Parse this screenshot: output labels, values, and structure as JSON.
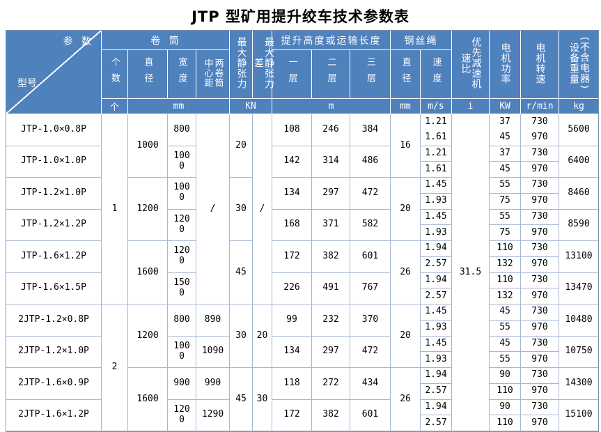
{
  "title": "JTP 型矿用提升绞车技术参数表",
  "colors": {
    "header_bg": "#4f81bd",
    "header_text": "#ffffff",
    "header_grid": "#ffffff",
    "body_grid": "#a4b7d3",
    "outer_border": "#7d91ad",
    "body_text": "#000000"
  },
  "header": {
    "corner": {
      "param_label": "参  数",
      "model_label": "型号"
    },
    "groups": {
      "drum": "卷 筒",
      "lift": "提升高度或运输长度",
      "rope": "钢丝绳"
    },
    "cols": {
      "count": "个数",
      "diameter": "直径",
      "width": "宽度",
      "center_distance": "两卷筒中心距",
      "max_static_tension": "最大静张力",
      "max_static_tension_diff": "最大静张力差",
      "layer1": "一层",
      "layer2": "二层",
      "layer3": "三层",
      "rope_diameter": "直径",
      "rope_speed": "速度",
      "reducer_ratio": "优先减速机速比",
      "motor_power": "电机功率",
      "motor_rpm": "电机转速",
      "weight": "设备重量(不含电器)"
    },
    "units": {
      "count": "个",
      "drum_mm": "mm",
      "tension_kn": "KN",
      "lift_m": "m",
      "rope_mm": "mm",
      "speed_ms": "m/s",
      "ratio_i": "i",
      "power_kw": "KW",
      "rpm_rmin": "r/min",
      "weight_kg": "kg"
    }
  },
  "table": {
    "reducer_ratio": "31.5",
    "counts": [
      {
        "start": 0,
        "span": 6,
        "value": "1"
      },
      {
        "start": 6,
        "span": 4,
        "value": "2"
      }
    ],
    "diameters": [
      {
        "start": 0,
        "span": 2,
        "value": "1000"
      },
      {
        "start": 2,
        "span": 2,
        "value": "1200"
      },
      {
        "start": 4,
        "span": 2,
        "value": "1600"
      },
      {
        "start": 6,
        "span": 2,
        "value": "1200"
      },
      {
        "start": 8,
        "span": 2,
        "value": "1600"
      }
    ],
    "centers": [
      {
        "start": 0,
        "span": 6,
        "value": "/"
      },
      {
        "start": 6,
        "span": 1,
        "value": "890"
      },
      {
        "start": 7,
        "span": 1,
        "value": "1090"
      },
      {
        "start": 8,
        "span": 1,
        "value": "990"
      },
      {
        "start": 9,
        "span": 1,
        "value": "1290"
      }
    ],
    "tensions": [
      {
        "start": 0,
        "span": 2,
        "value": "20"
      },
      {
        "start": 2,
        "span": 2,
        "value": "30"
      },
      {
        "start": 4,
        "span": 2,
        "value": "45"
      },
      {
        "start": 6,
        "span": 2,
        "value": "30"
      },
      {
        "start": 8,
        "span": 2,
        "value": "45"
      }
    ],
    "tension_diffs": [
      {
        "start": 0,
        "span": 6,
        "value": "/"
      },
      {
        "start": 6,
        "span": 2,
        "value": "20"
      },
      {
        "start": 8,
        "span": 2,
        "value": "30"
      }
    ],
    "rope_diameters": [
      {
        "start": 0,
        "span": 2,
        "value": "16"
      },
      {
        "start": 2,
        "span": 2,
        "value": "20"
      },
      {
        "start": 4,
        "span": 2,
        "value": "26"
      },
      {
        "start": 6,
        "span": 2,
        "value": "20"
      },
      {
        "start": 8,
        "span": 2,
        "value": "26"
      }
    ],
    "models": [
      {
        "name": "JTP-1.0×0.8P",
        "width": "800",
        "layers": [
          "108",
          "246",
          "384"
        ],
        "speeds": [
          "1.21",
          "1.61"
        ],
        "powers": [
          "37",
          "45"
        ],
        "rpms": [
          "730",
          "970"
        ],
        "weight": "5600"
      },
      {
        "name": "JTP-1.0×1.0P",
        "width": "1000",
        "layers": [
          "142",
          "314",
          "486"
        ],
        "speeds": [
          "1.21",
          "1.61"
        ],
        "powers": [
          "37",
          "45"
        ],
        "rpms": [
          "730",
          "970"
        ],
        "weight": "6400"
      },
      {
        "name": "JTP-1.2×1.0P",
        "width": "1000",
        "layers": [
          "134",
          "297",
          "472"
        ],
        "speeds": [
          "1.45",
          "1.93"
        ],
        "powers": [
          "55",
          "75"
        ],
        "rpms": [
          "730",
          "970"
        ],
        "weight": "8460"
      },
      {
        "name": "JTP-1.2×1.2P",
        "width": "1200",
        "layers": [
          "168",
          "371",
          "582"
        ],
        "speeds": [
          "1.45",
          "1.93"
        ],
        "powers": [
          "55",
          "75"
        ],
        "rpms": [
          "730",
          "970"
        ],
        "weight": "8590"
      },
      {
        "name": "JTP-1.6×1.2P",
        "width": "1200",
        "layers": [
          "172",
          "382",
          "601"
        ],
        "speeds": [
          "1.94",
          "2.57"
        ],
        "powers": [
          "110",
          "132"
        ],
        "rpms": [
          "730",
          "970"
        ],
        "weight": "13100"
      },
      {
        "name": "JTP-1.6×1.5P",
        "width": "1500",
        "layers": [
          "226",
          "491",
          "767"
        ],
        "speeds": [
          "1.94",
          "2.57"
        ],
        "powers": [
          "110",
          "132"
        ],
        "rpms": [
          "730",
          "970"
        ],
        "weight": "13470"
      },
      {
        "name": "2JTP-1.2×0.8P",
        "width": "800",
        "layers": [
          "99",
          "232",
          "370"
        ],
        "speeds": [
          "1.45",
          "1.93"
        ],
        "powers": [
          "45",
          "55"
        ],
        "rpms": [
          "730",
          "970"
        ],
        "weight": "10480"
      },
      {
        "name": "2JTP-1.2×1.0P",
        "width": "1000",
        "layers": [
          "134",
          "297",
          "472"
        ],
        "speeds": [
          "1.45",
          "1.93"
        ],
        "powers": [
          "45",
          "55"
        ],
        "rpms": [
          "730",
          "970"
        ],
        "weight": "10750"
      },
      {
        "name": "2JTP-1.6×0.9P",
        "width": "900",
        "layers": [
          "118",
          "272",
          "434"
        ],
        "speeds": [
          "1.94",
          "2.57"
        ],
        "powers": [
          "90",
          "110"
        ],
        "rpms": [
          "730",
          "970"
        ],
        "weight": "14300"
      },
      {
        "name": "2JTP-1.6×1.2P",
        "width": "1200",
        "layers": [
          "172",
          "382",
          "601"
        ],
        "speeds": [
          "1.94",
          "2.57"
        ],
        "powers": [
          "90",
          "110"
        ],
        "rpms": [
          "730",
          "970"
        ],
        "weight": "15100"
      }
    ]
  }
}
